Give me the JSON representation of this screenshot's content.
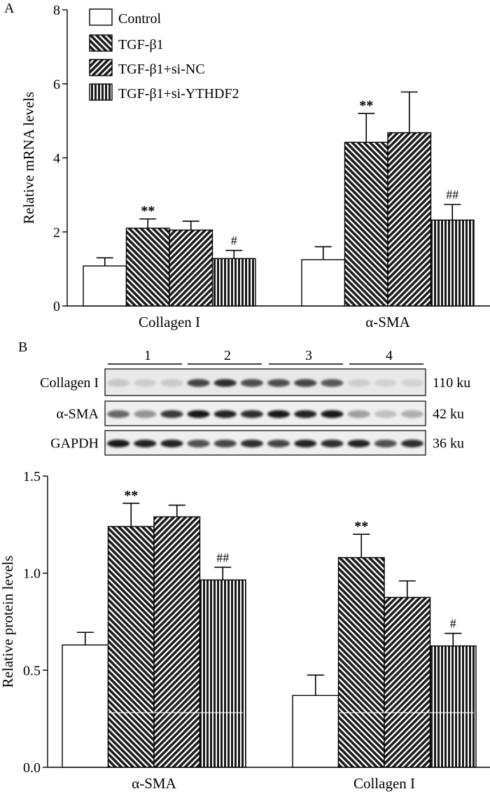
{
  "panel_a_label": "A",
  "panel_b_label": "B",
  "legend": [
    {
      "label": "Control",
      "pattern": "none"
    },
    {
      "label": "TGF-β1",
      "pattern": "diag-right"
    },
    {
      "label": "TGF-β1+si-NC",
      "pattern": "diag-left"
    },
    {
      "label": "TGF-β1+si-YTHDF2",
      "pattern": "vertical"
    }
  ],
  "blot": {
    "lanes": [
      "1",
      "2",
      "3",
      "4"
    ],
    "rows": [
      {
        "label": "Collagen I",
        "size": "110 ku"
      },
      {
        "label": "α-SMA",
        "size": "42 ku"
      },
      {
        "label": "GAPDH",
        "size": "36 ku"
      }
    ]
  },
  "chart_data": [
    {
      "type": "bar",
      "panel": "A",
      "ylabel": "Relative mRNA levels",
      "ylim": [
        0,
        8
      ],
      "yticks": [
        "0",
        "2",
        "4",
        "6",
        "8"
      ],
      "categories": [
        "Collagen I",
        "α-SMA"
      ],
      "series": [
        {
          "name": "Control",
          "values": [
            1.08,
            1.25
          ],
          "errors": [
            0.22,
            0.35
          ],
          "marks": [
            "",
            ""
          ]
        },
        {
          "name": "TGF-β1",
          "values": [
            2.1,
            4.42
          ],
          "errors": [
            0.25,
            0.78
          ],
          "marks": [
            "**",
            "**"
          ]
        },
        {
          "name": "TGF-β1+si-NC",
          "values": [
            2.05,
            4.68
          ],
          "errors": [
            0.24,
            1.1
          ],
          "marks": [
            "",
            ""
          ]
        },
        {
          "name": "TGF-β1+si-YTHDF2",
          "values": [
            1.28,
            2.32
          ],
          "errors": [
            0.22,
            0.42
          ],
          "marks": [
            "#",
            "##"
          ]
        }
      ]
    },
    {
      "type": "bar",
      "panel": "B",
      "ylabel": "Relative protein levels",
      "ylim": [
        0,
        1.5
      ],
      "yticks": [
        "0.0",
        "0.5",
        "1.0",
        "1.5"
      ],
      "categories": [
        "α-SMA",
        "Collagen I"
      ],
      "series": [
        {
          "name": "Control",
          "values": [
            0.63,
            0.37
          ],
          "errors": [
            0.065,
            0.105
          ],
          "marks": [
            "",
            ""
          ]
        },
        {
          "name": "TGF-β1",
          "values": [
            1.24,
            1.08
          ],
          "errors": [
            0.12,
            0.12
          ],
          "marks": [
            "**",
            "**"
          ]
        },
        {
          "name": "TGF-β1+si-NC",
          "values": [
            1.29,
            0.875
          ],
          "errors": [
            0.06,
            0.085
          ],
          "marks": [
            "",
            ""
          ]
        },
        {
          "name": "TGF-β1+si-YTHDF2",
          "values": [
            0.965,
            0.625
          ],
          "errors": [
            0.065,
            0.065
          ],
          "marks": [
            "##",
            "#"
          ]
        }
      ]
    }
  ]
}
